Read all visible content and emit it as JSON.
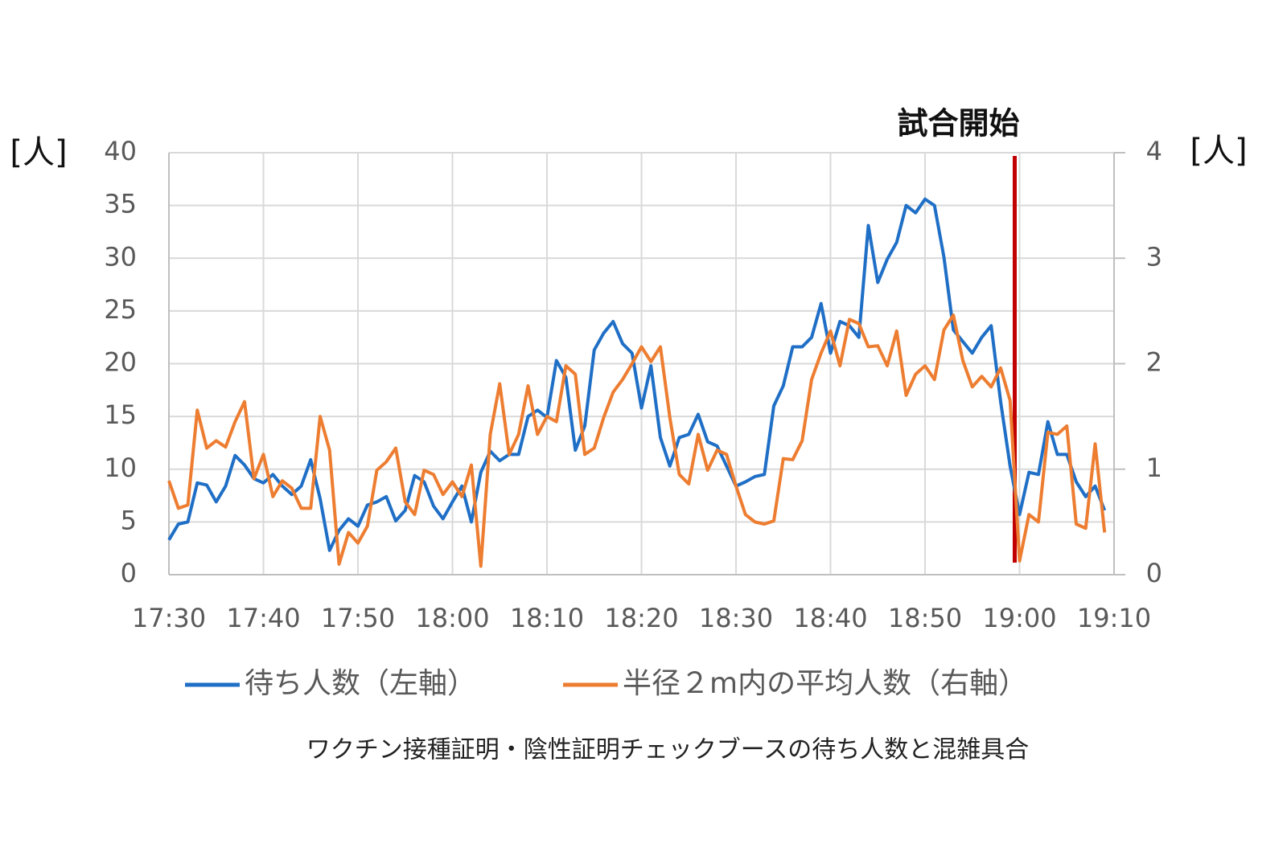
{
  "chart_data": {
    "type": "line",
    "y_label": "[人]",
    "y2_label": "[人]",
    "caption": "ワクチン接種証明・陰性証明チェックブースの待ち人数と混雑具合",
    "x": [
      "17:30",
      "17:31",
      "17:32",
      "17:33",
      "17:34",
      "17:35",
      "17:36",
      "17:37",
      "17:38",
      "17:39",
      "17:40",
      "17:41",
      "17:42",
      "17:43",
      "17:44",
      "17:45",
      "17:46",
      "17:47",
      "17:48",
      "17:49",
      "17:50",
      "17:51",
      "17:52",
      "17:53",
      "17:54",
      "17:55",
      "17:56",
      "17:57",
      "17:58",
      "17:59",
      "18:00",
      "18:01",
      "18:02",
      "18:03",
      "18:04",
      "18:05",
      "18:06",
      "18:07",
      "18:08",
      "18:09",
      "18:10",
      "18:11",
      "18:12",
      "18:13",
      "18:14",
      "18:15",
      "18:16",
      "18:17",
      "18:18",
      "18:19",
      "18:20",
      "18:21",
      "18:22",
      "18:23",
      "18:24",
      "18:25",
      "18:26",
      "18:27",
      "18:28",
      "18:29",
      "18:30",
      "18:31",
      "18:32",
      "18:33",
      "18:34",
      "18:35",
      "18:36",
      "18:37",
      "18:38",
      "18:39",
      "18:40",
      "18:41",
      "18:42",
      "18:43",
      "18:44",
      "18:45",
      "18:46",
      "18:47",
      "18:48",
      "18:49",
      "18:50",
      "18:51",
      "18:52",
      "18:53",
      "18:54",
      "18:55",
      "18:56",
      "18:57",
      "18:58",
      "18:59",
      "19:00",
      "19:01",
      "19:02",
      "19:03",
      "19:04",
      "19:05",
      "19:06",
      "19:07",
      "19:08",
      "19:09"
    ],
    "series": [
      {
        "name": "待ち人数（左軸）",
        "color": "#1f6fc6",
        "axis": "y",
        "values": [
          3.3,
          4.8,
          5,
          8.7,
          8.5,
          6.9,
          8.4,
          11.3,
          10.4,
          9.1,
          8.7,
          9.5,
          8.4,
          7.6,
          8.4,
          10.9,
          7.2,
          2.3,
          4.2,
          5.3,
          4.6,
          6.6,
          6.9,
          7.4,
          5.1,
          6.1,
          9.4,
          8.8,
          6.5,
          5.3,
          6.9,
          8.4,
          5,
          9.7,
          11.7,
          10.8,
          11.4,
          11.4,
          15,
          15.6,
          14.9,
          20.3,
          18.7,
          11.8,
          14.1,
          21.3,
          22.9,
          24,
          21.9,
          21,
          15.8,
          19.8,
          13,
          10.3,
          13,
          13.3,
          15.2,
          12.6,
          12.2,
          10.3,
          8.4,
          8.8,
          9.3,
          9.5,
          16,
          17.9,
          21.6,
          21.6,
          22.5,
          25.7,
          21,
          24,
          23.6,
          22.5,
          33.1,
          27.7,
          29.9,
          31.5,
          35,
          34.3,
          35.6,
          35,
          30.1,
          23.2,
          22.1,
          21,
          22.5,
          23.6,
          16.4,
          10.3,
          5.7,
          9.7,
          9.5,
          14.5,
          11.4,
          11.4,
          8.8,
          7.4,
          8.4,
          6.1
        ]
      },
      {
        "name": "半径２m内の平均人数（右軸）",
        "color": "#ed7d31",
        "axis": "y2",
        "values": [
          0.89,
          0.63,
          0.66,
          1.56,
          1.2,
          1.27,
          1.21,
          1.45,
          1.64,
          0.91,
          1.14,
          0.74,
          0.89,
          0.82,
          0.63,
          0.63,
          1.5,
          1.18,
          0.1,
          0.4,
          0.3,
          0.46,
          0.99,
          1.07,
          1.2,
          0.69,
          0.57,
          0.99,
          0.95,
          0.76,
          0.88,
          0.74,
          1.04,
          0.08,
          1.33,
          1.81,
          1.14,
          1.33,
          1.79,
          1.33,
          1.5,
          1.45,
          1.98,
          1.9,
          1.14,
          1.2,
          1.49,
          1.73,
          1.85,
          2,
          2.16,
          2.02,
          2.16,
          1.49,
          0.95,
          0.86,
          1.33,
          0.99,
          1.18,
          1.14,
          0.84,
          0.57,
          0.5,
          0.48,
          0.51,
          1.1,
          1.09,
          1.27,
          1.85,
          2.1,
          2.31,
          1.98,
          2.42,
          2.38,
          2.16,
          2.17,
          1.98,
          2.31,
          1.7,
          1.9,
          1.98,
          1.85,
          2.32,
          2.46,
          2.03,
          1.78,
          1.88,
          1.78,
          1.96,
          1.65,
          0.13,
          0.57,
          0.5,
          1.35,
          1.33,
          1.41,
          0.48,
          0.44,
          1.24,
          0.4
        ]
      }
    ],
    "xlim": [
      "17:30",
      "19:10"
    ],
    "xticks": [
      "17:30",
      "17:40",
      "17:50",
      "18:00",
      "18:10",
      "18:20",
      "18:30",
      "18:40",
      "18:50",
      "19:00",
      "19:10"
    ],
    "ylim": [
      0,
      40
    ],
    "yticks": [
      0,
      5,
      10,
      15,
      20,
      25,
      30,
      35,
      40
    ],
    "y2lim": [
      0,
      4
    ],
    "y2ticks": [
      0,
      1,
      2,
      3,
      4
    ],
    "grid": true,
    "legend": "bottom",
    "annotations": [
      {
        "x": "19:00",
        "text": "試合開始",
        "color": "#c00000"
      }
    ]
  }
}
